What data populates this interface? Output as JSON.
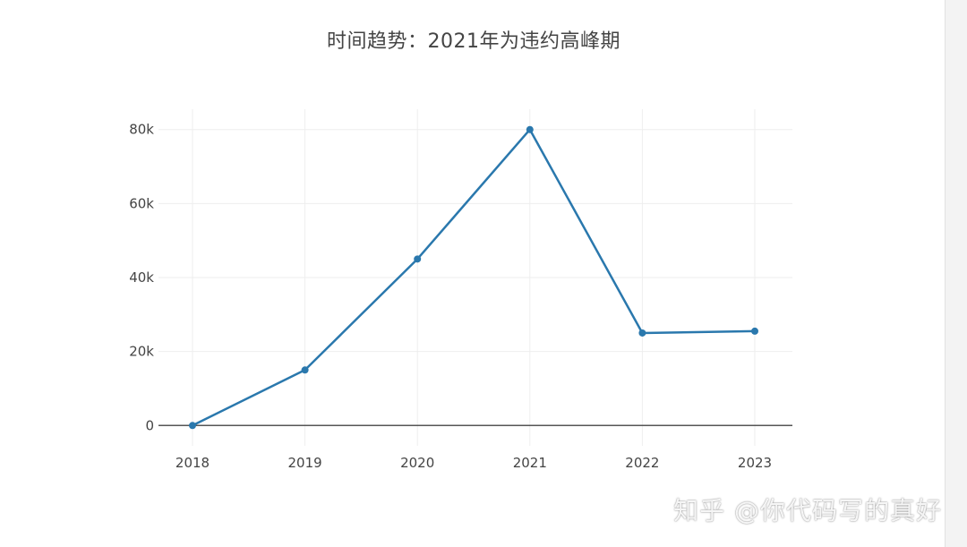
{
  "chart_data": {
    "type": "line",
    "title": "时间趋势：2021年为违约高峰期",
    "xlabel": "",
    "ylabel": "",
    "categories": [
      "2018",
      "2019",
      "2020",
      "2021",
      "2022",
      "2023"
    ],
    "values": [
      0,
      15000,
      45000,
      80000,
      25000,
      25500
    ],
    "ylim": [
      -5500,
      85500
    ],
    "yticks": [
      0,
      20000,
      40000,
      60000,
      80000
    ],
    "ytick_labels": [
      "0",
      "20k",
      "40k",
      "60k",
      "80k"
    ],
    "grid": true,
    "legend": false
  },
  "colors": {
    "line": "#2a78ad",
    "grid": "#eeeeee",
    "zeroline": "#555555",
    "text": "#444444"
  },
  "watermark": "知乎 @你代码写的真好"
}
